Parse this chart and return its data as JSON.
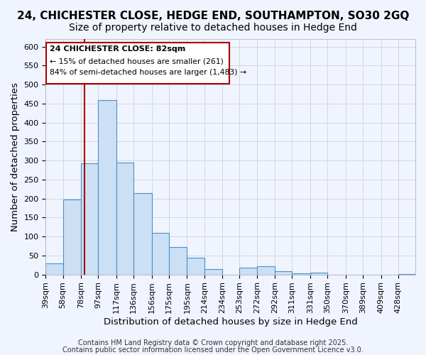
{
  "title": "24, CHICHESTER CLOSE, HEDGE END, SOUTHAMPTON, SO30 2GQ",
  "subtitle": "Size of property relative to detached houses in Hedge End",
  "xlabel": "Distribution of detached houses by size in Hedge End",
  "ylabel": "Number of detached properties",
  "bar_edges": [
    39,
    58,
    78,
    97,
    117,
    136,
    156,
    175,
    195,
    214,
    234,
    253,
    272,
    292,
    311,
    331,
    350,
    370,
    389,
    409,
    428
  ],
  "bar_heights": [
    30,
    197,
    293,
    460,
    295,
    215,
    110,
    73,
    45,
    14,
    0,
    18,
    21,
    9,
    3,
    5,
    0,
    0,
    0,
    0,
    1
  ],
  "bar_color": "#cce0f5",
  "bar_edge_color": "#4a90c4",
  "bar_linewidth": 0.8,
  "grid_color": "#cccccc",
  "background_color": "#f0f4ff",
  "red_line_x": 82,
  "red_line_color": "#aa0000",
  "ylim": [
    0,
    620
  ],
  "yticks": [
    0,
    50,
    100,
    150,
    200,
    250,
    300,
    350,
    400,
    450,
    500,
    550,
    600
  ],
  "annotation_title": "24 CHICHESTER CLOSE: 82sqm",
  "annotation_line1": "← 15% of detached houses are smaller (261)",
  "annotation_line2": "84% of semi-detached houses are larger (1,483) →",
  "annotation_box_color": "#ffffff",
  "annotation_box_edge": "#aa0000",
  "footer1": "Contains HM Land Registry data © Crown copyright and database right 2025.",
  "footer2": "Contains public sector information licensed under the Open Government Licence v3.0.",
  "title_fontsize": 11,
  "subtitle_fontsize": 10,
  "xlabel_fontsize": 9.5,
  "ylabel_fontsize": 9.5,
  "tick_fontsize": 8,
  "footer_fontsize": 7
}
